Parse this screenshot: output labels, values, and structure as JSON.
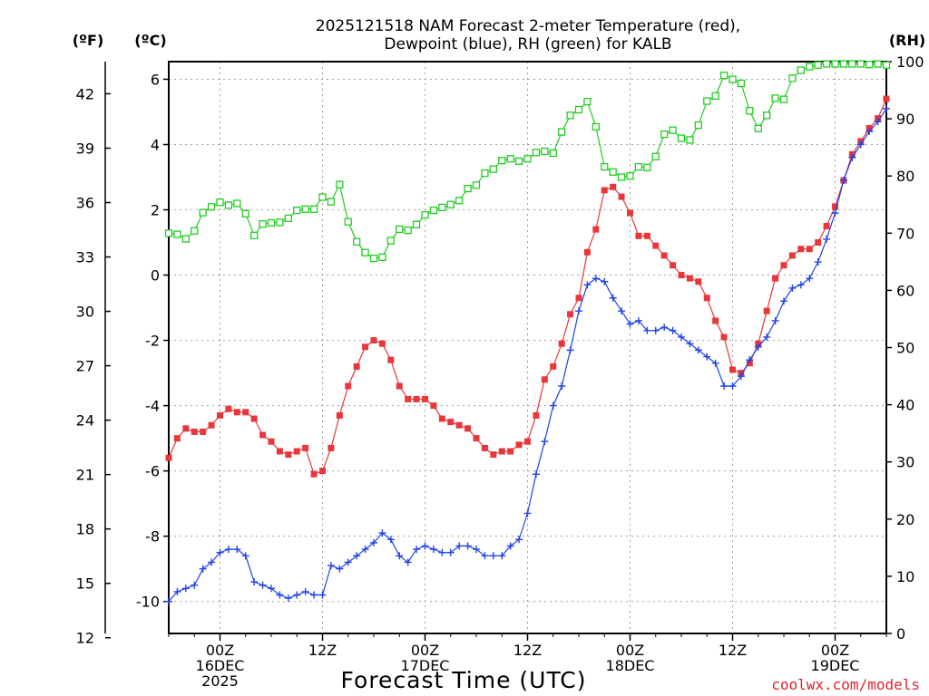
{
  "chart_data": {
    "type": "line",
    "title": [
      "2025121518 NAM Forecast 2-meter Temperature (red),",
      "Dewpoint (blue), RH (green) for KALB"
    ],
    "xlabel": "Forecast Time (UTC)",
    "unit_labels": {
      "fahrenheit": "(ºF)",
      "celsius": "(ºC)",
      "rh": "(RH)"
    },
    "credit": "coolwx.com/models",
    "x_range_hours": [
      0,
      84
    ],
    "celsius_range": [
      -10.98,
      6.54
    ],
    "rh_range": [
      0,
      100
    ],
    "celsius_ticks": [
      "-10",
      "-8",
      "-6",
      "-4",
      "-2",
      "0",
      "2",
      "4",
      "6"
    ],
    "fahrenheit_ticks": [
      "12",
      "15",
      "18",
      "21",
      "24",
      "27",
      "30",
      "33",
      "36",
      "39",
      "42"
    ],
    "rh_ticks": [
      "0",
      "10",
      "20",
      "30",
      "40",
      "50",
      "60",
      "70",
      "80",
      "90",
      "100"
    ],
    "x_ticks": [
      {
        "hour": 6,
        "lines": [
          "00Z",
          "16DEC",
          "2025"
        ]
      },
      {
        "hour": 18,
        "lines": [
          "12Z"
        ]
      },
      {
        "hour": 30,
        "lines": [
          "00Z",
          "17DEC"
        ]
      },
      {
        "hour": 42,
        "lines": [
          "12Z"
        ]
      },
      {
        "hour": 54,
        "lines": [
          "00Z",
          "18DEC"
        ]
      },
      {
        "hour": 66,
        "lines": [
          "12Z"
        ]
      },
      {
        "hour": 78,
        "lines": [
          "00Z",
          "19DEC"
        ]
      }
    ],
    "series": [
      {
        "name": "2-meter Temperature",
        "color": "#e8373a",
        "marker": "square-filled",
        "axis": "celsius",
        "x": [
          0,
          1,
          2,
          3,
          4,
          5,
          6,
          7,
          8,
          9,
          10,
          11,
          12,
          13,
          14,
          15,
          16,
          17,
          18,
          19,
          20,
          21,
          22,
          23,
          24,
          25,
          26,
          27,
          28,
          29,
          30,
          31,
          32,
          33,
          34,
          35,
          36,
          37,
          38,
          39,
          40,
          41,
          42,
          43,
          44,
          45,
          46,
          47,
          48,
          49,
          50,
          51,
          52,
          53,
          54,
          55,
          56,
          57,
          58,
          59,
          60,
          61,
          62,
          63,
          64,
          65,
          66,
          67,
          68,
          69,
          70,
          71,
          72,
          73,
          74,
          75,
          76,
          77,
          78,
          79,
          80,
          81,
          82,
          83,
          84
        ],
        "values": [
          -5.6,
          -5.0,
          -4.7,
          -4.8,
          -4.8,
          -4.6,
          -4.3,
          -4.1,
          -4.2,
          -4.2,
          -4.4,
          -4.9,
          -5.1,
          -5.4,
          -5.5,
          -5.4,
          -5.3,
          -6.1,
          -6.0,
          -5.3,
          -4.3,
          -3.4,
          -2.8,
          -2.2,
          -2.0,
          -2.1,
          -2.6,
          -3.4,
          -3.8,
          -3.8,
          -3.8,
          -4.0,
          -4.4,
          -4.5,
          -4.6,
          -4.7,
          -5.0,
          -5.3,
          -5.5,
          -5.4,
          -5.4,
          -5.2,
          -5.1,
          -4.3,
          -3.2,
          -2.8,
          -2.1,
          -1.2,
          -0.7,
          0.7,
          1.4,
          2.6,
          2.7,
          2.4,
          1.9,
          1.2,
          1.2,
          0.9,
          0.6,
          0.3,
          0.0,
          -0.1,
          -0.2,
          -0.7,
          -1.4,
          -1.9,
          -2.9,
          -3.0,
          -2.7,
          -2.1,
          -1.1,
          -0.1,
          0.3,
          0.6,
          0.8,
          0.8,
          1.0,
          1.5,
          2.1,
          2.9,
          3.7,
          4.1,
          4.5,
          4.8,
          5.4
        ]
      },
      {
        "name": "Dewpoint",
        "color": "#2244e6",
        "marker": "plus",
        "axis": "celsius",
        "x": [
          0,
          1,
          2,
          3,
          4,
          5,
          6,
          7,
          8,
          9,
          10,
          11,
          12,
          13,
          14,
          15,
          16,
          17,
          18,
          19,
          20,
          21,
          22,
          23,
          24,
          25,
          26,
          27,
          28,
          29,
          30,
          31,
          32,
          33,
          34,
          35,
          36,
          37,
          38,
          39,
          40,
          41,
          42,
          43,
          44,
          45,
          46,
          47,
          48,
          49,
          50,
          51,
          52,
          53,
          54,
          55,
          56,
          57,
          58,
          59,
          60,
          61,
          62,
          63,
          64,
          65,
          66,
          67,
          68,
          69,
          70,
          71,
          72,
          73,
          74,
          75,
          76,
          77,
          78,
          79,
          80,
          81,
          82,
          83,
          84
        ],
        "values": [
          -10.0,
          -9.7,
          -9.6,
          -9.5,
          -9.0,
          -8.8,
          -8.5,
          -8.4,
          -8.4,
          -8.6,
          -9.4,
          -9.5,
          -9.6,
          -9.8,
          -9.9,
          -9.8,
          -9.7,
          -9.8,
          -9.8,
          -8.9,
          -9.0,
          -8.8,
          -8.6,
          -8.4,
          -8.2,
          -7.9,
          -8.1,
          -8.6,
          -8.8,
          -8.4,
          -8.3,
          -8.4,
          -8.5,
          -8.5,
          -8.3,
          -8.3,
          -8.4,
          -8.6,
          -8.6,
          -8.6,
          -8.3,
          -8.1,
          -7.3,
          -6.1,
          -5.1,
          -4.0,
          -3.4,
          -2.3,
          -1.1,
          -0.3,
          -0.1,
          -0.2,
          -0.7,
          -1.1,
          -1.5,
          -1.4,
          -1.7,
          -1.7,
          -1.6,
          -1.7,
          -1.9,
          -2.1,
          -2.3,
          -2.5,
          -2.7,
          -3.4,
          -3.4,
          -3.1,
          -2.6,
          -2.2,
          -1.9,
          -1.4,
          -0.8,
          -0.4,
          -0.3,
          -0.1,
          0.4,
          1.1,
          1.9,
          2.9,
          3.6,
          4.0,
          4.4,
          4.7,
          5.1
        ]
      },
      {
        "name": "RH",
        "color": "#22cc22",
        "marker": "square-open",
        "axis": "rh",
        "x": [
          0,
          1,
          2,
          3,
          4,
          5,
          6,
          7,
          8,
          9,
          10,
          11,
          12,
          13,
          14,
          15,
          16,
          17,
          18,
          19,
          20,
          21,
          22,
          23,
          24,
          25,
          26,
          27,
          28,
          29,
          30,
          31,
          32,
          33,
          34,
          35,
          36,
          37,
          38,
          39,
          40,
          41,
          42,
          43,
          44,
          45,
          46,
          47,
          48,
          49,
          50,
          51,
          52,
          53,
          54,
          55,
          56,
          57,
          58,
          59,
          60,
          61,
          62,
          63,
          64,
          65,
          66,
          67,
          68,
          69,
          70,
          71,
          72,
          73,
          74,
          75,
          76,
          77,
          78,
          79,
          80,
          81,
          82,
          83,
          84
        ],
        "values": [
          70,
          69.8,
          69,
          70.4,
          73.6,
          74.6,
          75.4,
          74.9,
          75.2,
          73.4,
          69.6,
          71.6,
          71.8,
          71.9,
          72.6,
          74,
          74.2,
          74.2,
          76.3,
          75.5,
          78.5,
          72,
          68.5,
          66.6,
          65.6,
          65.8,
          68.7,
          70.7,
          70.5,
          71.5,
          73.2,
          74,
          74.5,
          75,
          75.7,
          77.8,
          78.4,
          80.5,
          81.2,
          82.7,
          83,
          82.6,
          83,
          84.1,
          84.3,
          84,
          87.7,
          90.6,
          91.6,
          93,
          88.6,
          81.6,
          80.7,
          79.8,
          80,
          81.6,
          81.5,
          83.4,
          87.3,
          88,
          86.6,
          86.3,
          88.9,
          93.1,
          94,
          97.6,
          96.9,
          96.2,
          91.4,
          88.3,
          90.6,
          93.6,
          93.4,
          97.1,
          98.5,
          99.1,
          99.4,
          99.6,
          99.6,
          99.6,
          99.6,
          99.6,
          99.5,
          99.6,
          99.4
        ]
      }
    ]
  }
}
